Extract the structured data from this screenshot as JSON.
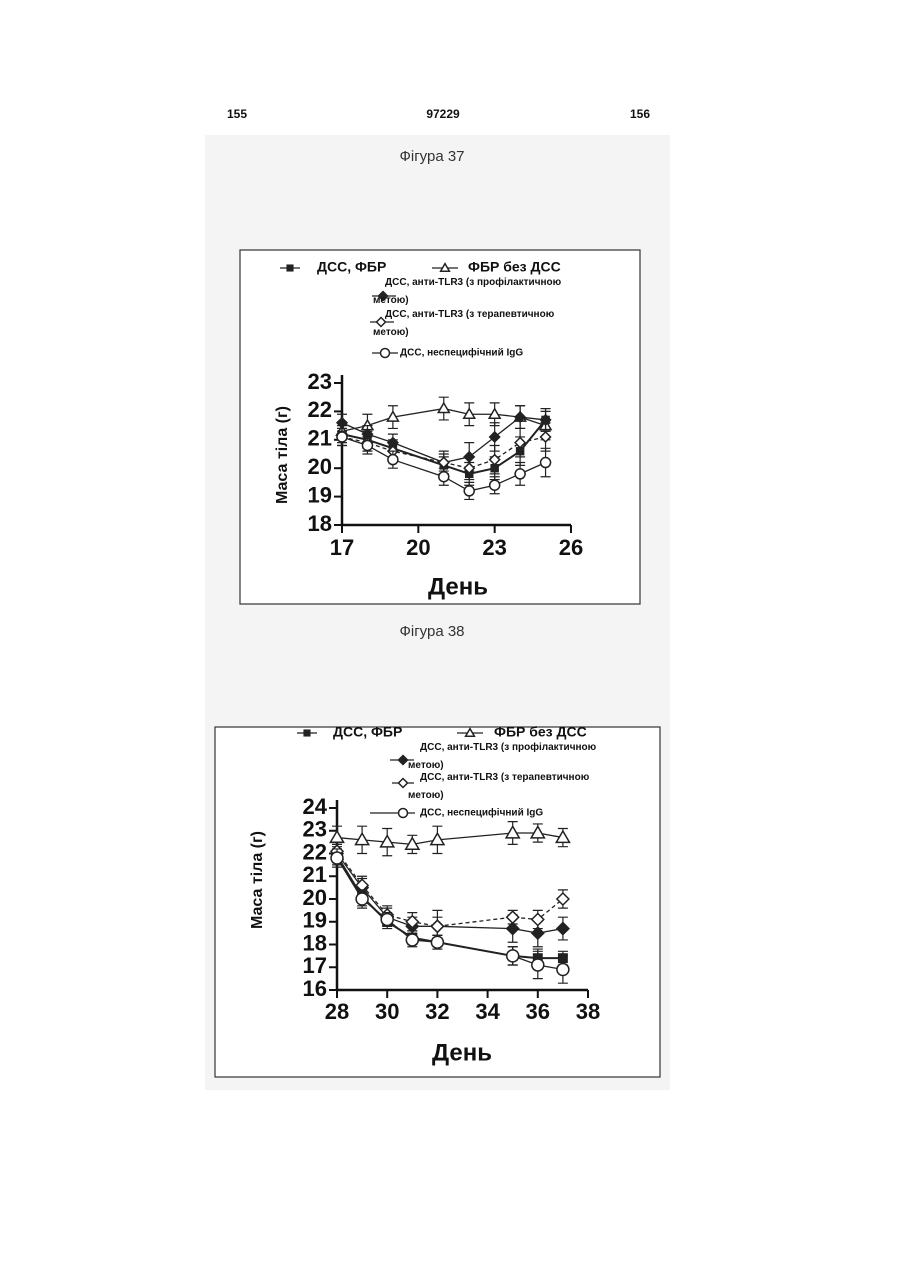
{
  "page_header": {
    "left": "155",
    "center": "97229",
    "right": "156"
  },
  "chart_data": [
    {
      "type": "line",
      "title": "Фігура 37",
      "xlabel": "День",
      "ylabel": "Маса тіла (г)",
      "x": [
        17,
        18,
        19,
        21,
        22,
        23,
        24,
        25
      ],
      "xlim": [
        17,
        26
      ],
      "xticks": [
        17,
        20,
        23,
        26
      ],
      "ylim": [
        18,
        23
      ],
      "yticks": [
        18,
        19,
        20,
        21,
        22,
        23
      ],
      "series": [
        {
          "name": "ДСС, ФБР",
          "color": "#222222",
          "marker": "square",
          "filled": true,
          "dashed": false,
          "values": [
            21.2,
            21.0,
            20.7,
            20.1,
            19.8,
            20.0,
            20.6,
            21.7
          ],
          "errors": [
            0.3,
            0.3,
            0.3,
            0.3,
            0.4,
            0.4,
            0.5,
            0.4
          ]
        },
        {
          "name": "ФБР без ДСС",
          "color": "#222222",
          "marker": "triangle",
          "filled": false,
          "dashed": false,
          "values": [
            21.3,
            21.5,
            21.8,
            22.1,
            21.9,
            21.9,
            21.8,
            21.5
          ],
          "errors": [
            0.3,
            0.4,
            0.4,
            0.4,
            0.4,
            0.4,
            0.4,
            0.5
          ]
        },
        {
          "name": "ДСС, анти-TLR3 (з профілактичною метою)",
          "color": "#222222",
          "marker": "diamond",
          "filled": true,
          "dashed": false,
          "values": [
            21.6,
            21.2,
            20.9,
            20.2,
            20.4,
            21.1,
            21.8,
            21.7
          ],
          "errors": [
            0.3,
            0.3,
            0.3,
            0.4,
            0.5,
            0.5,
            0.4,
            0.4
          ]
        },
        {
          "name": "ДСС, анти-TLR3 (з терапевтичною метою)",
          "color": "#222222",
          "marker": "diamond",
          "filled": false,
          "dashed": true,
          "values": [
            21.1,
            20.9,
            20.6,
            20.2,
            20.0,
            20.3,
            20.9,
            21.1
          ],
          "errors": [
            0.3,
            0.3,
            0.3,
            0.3,
            0.4,
            0.5,
            0.5,
            0.5
          ]
        },
        {
          "name": "ДСС, неспецифічний IgG",
          "color": "#222222",
          "marker": "circle",
          "filled": false,
          "dashed": false,
          "values": [
            21.1,
            20.8,
            20.3,
            19.7,
            19.2,
            19.4,
            19.8,
            20.2
          ],
          "errors": [
            0.3,
            0.3,
            0.3,
            0.3,
            0.3,
            0.3,
            0.4,
            0.5
          ]
        }
      ]
    },
    {
      "type": "line",
      "title": "Фігура 38",
      "xlabel": "День",
      "ylabel": "Маса тіла (г)",
      "x": [
        28,
        29,
        30,
        31,
        32,
        35,
        36,
        37
      ],
      "xlim": [
        28,
        38
      ],
      "xticks": [
        28,
        30,
        32,
        34,
        36,
        38
      ],
      "ylim": [
        16,
        24
      ],
      "yticks": [
        16,
        17,
        18,
        19,
        20,
        21,
        22,
        23,
        24
      ],
      "series": [
        {
          "name": "ДСС, ФБР",
          "color": "#222222",
          "marker": "square",
          "filled": true,
          "dashed": false,
          "values": [
            21.9,
            20.1,
            19.0,
            18.3,
            18.1,
            17.5,
            17.4,
            17.4
          ],
          "errors": [
            0.4,
            0.4,
            0.3,
            0.3,
            0.3,
            0.4,
            0.4,
            0.3
          ]
        },
        {
          "name": "ФБР без ДСС",
          "color": "#222222",
          "marker": "triangle",
          "filled": false,
          "dashed": false,
          "values": [
            22.7,
            22.6,
            22.5,
            22.4,
            22.6,
            22.9,
            22.9,
            22.7
          ],
          "errors": [
            0.5,
            0.6,
            0.6,
            0.4,
            0.6,
            0.5,
            0.4,
            0.4
          ]
        },
        {
          "name": "ДСС, анти-TLR3 (з профілактичною метою)",
          "color": "#222222",
          "marker": "diamond",
          "filled": true,
          "dashed": false,
          "values": [
            22.0,
            20.5,
            19.2,
            18.8,
            18.8,
            18.7,
            18.5,
            18.7
          ],
          "errors": [
            0.4,
            0.4,
            0.4,
            0.4,
            0.7,
            0.6,
            0.6,
            0.5
          ]
        },
        {
          "name": "ДСС, анти-TLR3 (з терапевтичною метою)",
          "color": "#222222",
          "marker": "diamond",
          "filled": false,
          "dashed": true,
          "values": [
            22.1,
            20.6,
            19.3,
            19.0,
            18.8,
            19.2,
            19.1,
            20.0
          ],
          "errors": [
            0.4,
            0.4,
            0.4,
            0.4,
            0.4,
            0.3,
            0.4,
            0.4
          ]
        },
        {
          "name": "ДСС, неспецифічний IgG",
          "color": "#222222",
          "marker": "circle",
          "filled": false,
          "dashed": false,
          "values": [
            21.8,
            20.0,
            19.1,
            18.2,
            18.1,
            17.5,
            17.1,
            16.9
          ],
          "errors": [
            0.4,
            0.4,
            0.3,
            0.3,
            0.3,
            0.4,
            0.6,
            0.6
          ]
        }
      ]
    }
  ]
}
